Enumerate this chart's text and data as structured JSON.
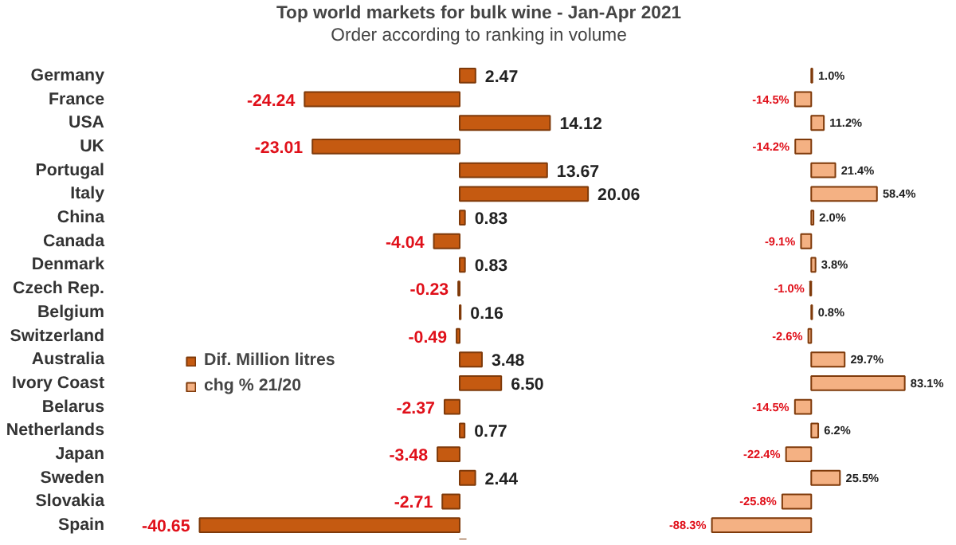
{
  "chart_data": [
    {
      "type": "bar",
      "orientation": "horizontal",
      "title": "Top world markets for bulk wine - Jan-Apr 2021",
      "subtitle": "Order according to ranking in volume",
      "categories": [
        "Germany",
        "France",
        "USA",
        "UK",
        "Portugal",
        "Italy",
        "China",
        "Canada",
        "Denmark",
        "Czech Rep.",
        "Belgium",
        "Switzerland",
        "Australia",
        "Ivory Coast",
        "Belarus",
        "Netherlands",
        "Japan",
        "Sweden",
        "Slovakia",
        "Spain"
      ],
      "series": [
        {
          "name": "Dif. Million litres",
          "color": "#c55a11",
          "values": [
            2.47,
            -24.24,
            14.12,
            -23.01,
            13.67,
            20.06,
            0.83,
            -4.04,
            0.83,
            -0.23,
            0.16,
            -0.49,
            3.48,
            6.5,
            -2.37,
            0.77,
            -3.48,
            2.44,
            -2.71,
            -40.65
          ],
          "value_labels": [
            "2.47",
            "-24.24",
            "14.12",
            "-23.01",
            "13.67",
            "20.06",
            "0.83",
            "-4.04",
            "0.83",
            "-0.23",
            "0.16",
            "-0.49",
            "3.48",
            "6.50",
            "-2.37",
            "0.77",
            "-3.48",
            "2.44",
            "-2.71",
            "-40.65"
          ]
        }
      ],
      "tick_labels": "y",
      "legend": "left"
    },
    {
      "type": "bar",
      "orientation": "horizontal",
      "categories": [
        null,
        null,
        null,
        null,
        null,
        null,
        null,
        null,
        null,
        null,
        null,
        null,
        null,
        null,
        null,
        null,
        null,
        null,
        null,
        null
      ],
      "series": [
        {
          "name": "chg % 21/20",
          "color": "#f4b183",
          "values": [
            1.0,
            -14.5,
            11.2,
            -14.2,
            21.4,
            58.4,
            2.0,
            -9.1,
            3.8,
            -1.0,
            0.8,
            -2.6,
            29.7,
            83.1,
            -14.5,
            6.2,
            -22.4,
            25.5,
            -25.8,
            -88.3
          ],
          "value_labels": [
            "1.0%",
            "-14.5%",
            "11.2%",
            "-14.2%",
            "21.4%",
            "58.4%",
            "2.0%",
            "-9.1%",
            "3.8%",
            "-1.0%",
            "0.8%",
            "-2.6%",
            "29.7%",
            "83.1%",
            "-14.5%",
            "6.2%",
            "-22.4%",
            "25.5%",
            "-25.8%",
            "-88.3%"
          ]
        }
      ],
      "tick_labels": false
    }
  ]
}
